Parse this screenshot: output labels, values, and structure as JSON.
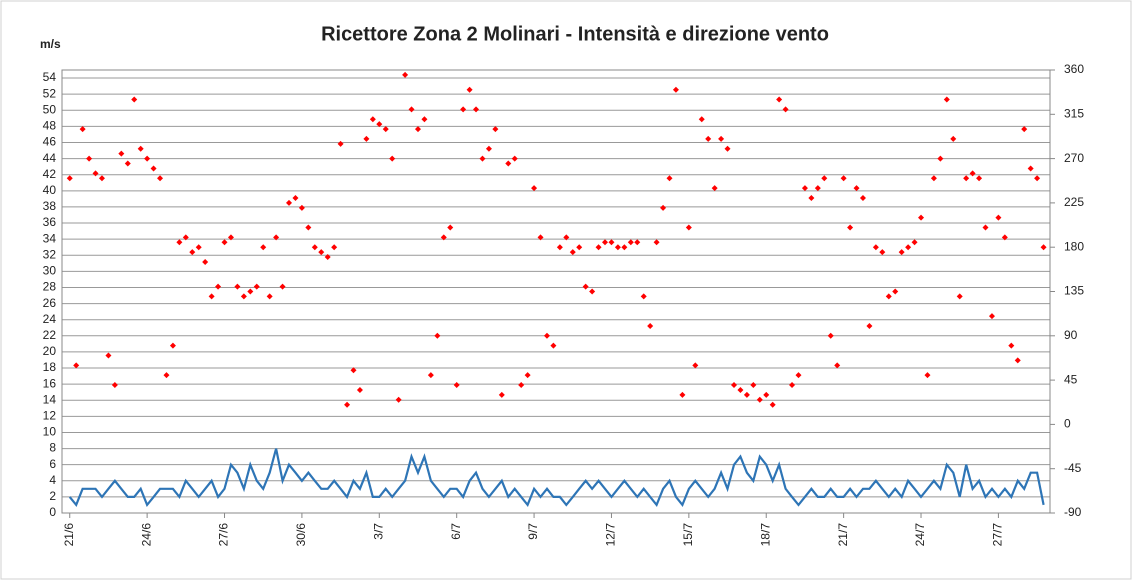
{
  "chart_data": {
    "type": "line-scatter",
    "title": "Ricettore Zona 2 Molinari - Intensità e direzione vento",
    "y_label": "m/s",
    "x": [
      0,
      0.25,
      0.5,
      0.75,
      1,
      1.25,
      1.5,
      1.75,
      2,
      2.25,
      2.5,
      2.75,
      3,
      3.25,
      3.5,
      3.75,
      4,
      4.25,
      4.5,
      4.75,
      5,
      5.25,
      5.5,
      5.75,
      6,
      6.25,
      6.5,
      6.75,
      7,
      7.25,
      7.5,
      7.75,
      8,
      8.25,
      8.5,
      8.75,
      9,
      9.25,
      9.5,
      9.75,
      10,
      10.25,
      10.5,
      10.75,
      11,
      11.25,
      11.5,
      11.75,
      12,
      12.25,
      12.5,
      12.75,
      13,
      13.25,
      13.5,
      13.75,
      14,
      14.25,
      14.5,
      14.75,
      15,
      15.25,
      15.5,
      15.75,
      16,
      16.25,
      16.5,
      16.75,
      17,
      17.25,
      17.5,
      17.75,
      18,
      18.25,
      18.5,
      18.75,
      19,
      19.25,
      19.5,
      19.75,
      20,
      20.25,
      20.5,
      20.75,
      21,
      21.25,
      21.5,
      21.75,
      22,
      22.25,
      22.5,
      22.75,
      23,
      23.25,
      23.5,
      23.75,
      24,
      24.25,
      24.5,
      24.75,
      25,
      25.25,
      25.5,
      25.75,
      26,
      26.25,
      26.5,
      26.75,
      27,
      27.25,
      27.5,
      27.75,
      28,
      28.25,
      28.5,
      28.75,
      29,
      29.25,
      29.5,
      29.75,
      30,
      30.25,
      30.5,
      30.75,
      31,
      31.25,
      31.5,
      31.75,
      32,
      32.25,
      32.5,
      32.75,
      33,
      33.25,
      33.5,
      33.75,
      34,
      34.25,
      34.5,
      34.75,
      35,
      35.25,
      35.5,
      35.75,
      36,
      36.25,
      36.5,
      36.75,
      37,
      37.25,
      37.5,
      37.75
    ],
    "series": [
      {
        "color": "#2e75b6",
        "axis": "y",
        "values": [
          2,
          1,
          3,
          3,
          3,
          2,
          3,
          4,
          3,
          2,
          2,
          3,
          1,
          2,
          3,
          3,
          3,
          2,
          4,
          3,
          2,
          3,
          4,
          2,
          3,
          6,
          5,
          3,
          6,
          4,
          3,
          5,
          8,
          4,
          6,
          5,
          4,
          5,
          4,
          3,
          3,
          4,
          3,
          2,
          4,
          3,
          5,
          2,
          2,
          3,
          2,
          3,
          4,
          7,
          5,
          7,
          4,
          3,
          2,
          3,
          3,
          2,
          4,
          5,
          3,
          2,
          3,
          4,
          2,
          3,
          2,
          1,
          3,
          2,
          3,
          2,
          2,
          1,
          2,
          3,
          4,
          3,
          4,
          3,
          2,
          3,
          4,
          3,
          2,
          3,
          2,
          1,
          3,
          4,
          2,
          1,
          3,
          4,
          3,
          2,
          3,
          5,
          3,
          6,
          7,
          5,
          4,
          7,
          6,
          4,
          6,
          3,
          2,
          1,
          2,
          3,
          2,
          2,
          3,
          2,
          2,
          3,
          2,
          3,
          3,
          4,
          3,
          2,
          3,
          2,
          4,
          3,
          2,
          3,
          4,
          3,
          6,
          5,
          2,
          6,
          3,
          4,
          2,
          3,
          2,
          3,
          2,
          4,
          3,
          5,
          5,
          1
        ]
      },
      {
        "color": "#ff0000",
        "axis": "y2",
        "values": [
          250,
          60,
          300,
          270,
          255,
          250,
          70,
          40,
          275,
          265,
          330,
          280,
          270,
          260,
          250,
          50,
          80,
          185,
          190,
          175,
          180,
          165,
          130,
          140,
          185,
          190,
          140,
          130,
          135,
          140,
          180,
          130,
          190,
          140,
          225,
          230,
          220,
          200,
          180,
          175,
          170,
          180,
          285,
          20,
          55,
          35,
          290,
          310,
          305,
          300,
          270,
          25,
          355,
          320,
          300,
          310,
          50,
          90,
          190,
          200,
          40,
          320,
          340,
          320,
          270,
          280,
          300,
          30,
          265,
          270,
          40,
          50,
          240,
          190,
          90,
          80,
          180,
          190,
          175,
          180,
          140,
          135,
          180,
          185,
          185,
          180,
          180,
          185,
          185,
          130,
          100,
          185,
          220,
          250,
          340,
          30,
          200,
          60,
          310,
          290,
          240,
          290,
          280,
          40,
          35,
          30,
          40,
          25,
          30,
          20,
          330,
          320,
          40,
          50,
          240,
          230,
          240,
          250,
          90,
          60,
          250,
          200,
          240,
          230,
          100,
          180,
          175,
          130,
          135,
          175,
          180,
          185,
          210,
          50,
          250,
          270,
          330,
          290,
          130,
          250,
          255,
          250,
          200,
          110,
          210,
          190,
          80,
          65,
          300,
          260,
          250,
          180
        ]
      }
    ],
    "xlim": [
      -0.3,
      38
    ],
    "xticks": [
      {
        "value": 0,
        "label": "21/6"
      },
      {
        "value": 3,
        "label": "24/6"
      },
      {
        "value": 6,
        "label": "27/6"
      },
      {
        "value": 9,
        "label": "30/6"
      },
      {
        "value": 12,
        "label": "3/7"
      },
      {
        "value": 15,
        "label": "6/7"
      },
      {
        "value": 18,
        "label": "9/7"
      },
      {
        "value": 21,
        "label": "12/7"
      },
      {
        "value": 24,
        "label": "15/7"
      },
      {
        "value": 27,
        "label": "18/7"
      },
      {
        "value": 30,
        "label": "21/7"
      },
      {
        "value": 33,
        "label": "24/7"
      },
      {
        "value": 36,
        "label": "27/7"
      }
    ],
    "ylim": [
      0,
      55
    ],
    "yticks": [
      0,
      2,
      4,
      6,
      8,
      10,
      12,
      14,
      16,
      18,
      20,
      22,
      24,
      26,
      28,
      30,
      32,
      34,
      36,
      38,
      40,
      42,
      44,
      46,
      48,
      50,
      52,
      54
    ],
    "y2lim": [
      -90,
      360
    ],
    "y2ticks": [
      -90,
      -45,
      0,
      45,
      90,
      135,
      180,
      225,
      270,
      315,
      360
    ],
    "grid": true
  }
}
